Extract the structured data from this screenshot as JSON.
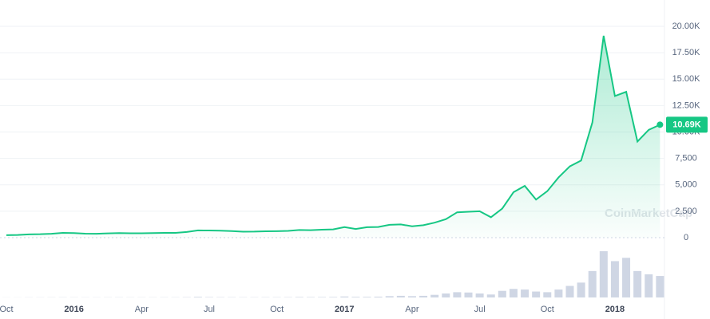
{
  "chart_data": {
    "type": "line",
    "categories": [
      "Oct",
      null,
      null,
      null,
      null,
      null,
      "2016",
      null,
      null,
      null,
      null,
      null,
      "Apr",
      null,
      null,
      null,
      null,
      null,
      "Jul",
      null,
      null,
      null,
      null,
      null,
      "Oct",
      null,
      null,
      null,
      null,
      null,
      "2017",
      null,
      null,
      null,
      null,
      null,
      "Apr",
      null,
      null,
      null,
      null,
      null,
      "Jul",
      null,
      null,
      null,
      null,
      null,
      "Oct",
      null,
      null,
      null,
      null,
      null,
      "2018",
      null,
      null,
      null,
      null
    ],
    "values": [
      238,
      255,
      315,
      330,
      370,
      455,
      430,
      380,
      370,
      405,
      435,
      415,
      416,
      430,
      450,
      455,
      535,
      690,
      675,
      665,
      620,
      570,
      575,
      605,
      615,
      640,
      730,
      710,
      755,
      780,
      1000,
      820,
      990,
      1010,
      1220,
      1250,
      1080,
      1180,
      1420,
      1750,
      2400,
      2450,
      2500,
      1930,
      2750,
      4300,
      4900,
      3600,
      4400,
      5700,
      6750,
      7300,
      10900,
      19100,
      13400,
      13800,
      9100,
      10200,
      10690
    ],
    "volume": [
      0.03,
      0.03,
      0.05,
      0.05,
      0.06,
      0.07,
      0.06,
      0.05,
      0.05,
      0.06,
      0.07,
      0.06,
      0.06,
      0.06,
      0.07,
      0.07,
      0.1,
      0.2,
      0.12,
      0.1,
      0.09,
      0.08,
      0.08,
      0.09,
      0.09,
      0.1,
      0.15,
      0.13,
      0.14,
      0.16,
      0.3,
      0.2,
      0.2,
      0.25,
      0.4,
      0.5,
      0.4,
      0.5,
      0.8,
      1.2,
      1.6,
      1.5,
      1.2,
      0.9,
      2.0,
      2.6,
      2.4,
      1.8,
      1.6,
      2.4,
      3.5,
      4.5,
      8.0,
      14.0,
      11.0,
      12.0,
      8.0,
      7.0,
      6.5
    ],
    "color": "#16c784",
    "ylim": [
      0,
      20000
    ],
    "yticks": [
      0,
      {
        "value": 2500,
        "label": "2,500"
      },
      {
        "value": 5000,
        "label": "5,000"
      },
      {
        "value": 7500,
        "label": "7,500"
      },
      {
        "value": 10000,
        "label": "10.00K"
      },
      {
        "value": 12500,
        "label": "12.50K"
      },
      {
        "value": 15000,
        "label": "15.00K"
      },
      {
        "value": 17500,
        "label": "17.50K"
      },
      {
        "value": 20000,
        "label": "20.00K"
      }
    ],
    "grid": true,
    "current": {
      "value": 10690,
      "label": "10.69K"
    },
    "watermark": "CoinMarketCap"
  }
}
